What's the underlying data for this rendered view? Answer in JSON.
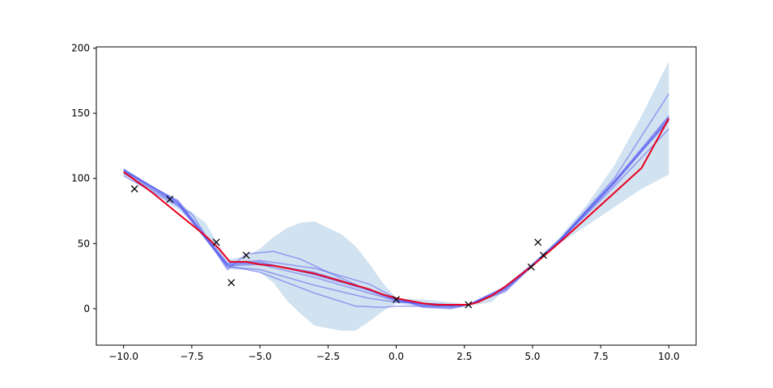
{
  "chart_data": {
    "type": "line",
    "title": "",
    "xlabel": "",
    "ylabel": "",
    "xlim": [
      -11,
      11
    ],
    "ylim": [
      -28,
      201
    ],
    "grid": false,
    "x_ticks": [
      -10.0,
      -7.5,
      -5.0,
      -2.5,
      0.0,
      2.5,
      5.0,
      7.5,
      10.0
    ],
    "x_tick_labels": [
      "−10.0",
      "−7.5",
      "−5.0",
      "−2.5",
      "0.0",
      "2.5",
      "5.0",
      "7.5",
      "10.0"
    ],
    "y_ticks": [
      0,
      50,
      100,
      150,
      200
    ],
    "y_tick_labels": [
      "0",
      "50",
      "100",
      "150",
      "200"
    ],
    "colors": {
      "band": "#c6dbec",
      "samples": "#5a5cf0",
      "mean": "#e8001f",
      "observations": "#000000"
    },
    "confidence_band": {
      "x": [
        -10,
        -9,
        -8,
        -7,
        -6.2,
        -5.5,
        -5,
        -4.5,
        -4,
        -3.5,
        -3,
        -2.5,
        -2,
        -1.5,
        -1,
        -0.5,
        0,
        1,
        2,
        2.65,
        3.5,
        4,
        5,
        6,
        7,
        8,
        9,
        10
      ],
      "upper": [
        108,
        95,
        82,
        66,
        38,
        40,
        46,
        55,
        62,
        66,
        67,
        62,
        57,
        48,
        35,
        20,
        8,
        7,
        5,
        3,
        10,
        18,
        35,
        55,
        80,
        110,
        148,
        190
      ],
      "lower": [
        102,
        90,
        76,
        58,
        30,
        30,
        28,
        20,
        6,
        -4,
        -13,
        -15,
        -17,
        -17,
        -10,
        -2,
        4,
        1,
        0,
        2,
        5,
        15,
        32,
        50,
        64,
        78,
        92,
        103
      ]
    },
    "samples": [
      {
        "x": [
          -10,
          -8,
          -6.2,
          -5,
          -3,
          -1,
          0,
          1,
          2,
          2.65,
          4,
          5,
          6,
          8,
          10
        ],
        "y": [
          107,
          82,
          33,
          34,
          24,
          12,
          6,
          3,
          2,
          3,
          14,
          33,
          52,
          96,
          145
        ]
      },
      {
        "x": [
          -10,
          -8,
          -6.2,
          -5,
          -3,
          -1,
          0,
          1,
          2,
          2.65,
          4,
          5,
          6,
          8,
          10
        ],
        "y": [
          106,
          80,
          34,
          35,
          28,
          15,
          7,
          2,
          1,
          3,
          16,
          34,
          53,
          98,
          148
        ]
      },
      {
        "x": [
          -10,
          -8,
          -6.2,
          -5,
          -3,
          -1,
          0,
          1,
          2,
          2.65,
          4,
          5,
          6,
          8,
          10
        ],
        "y": [
          105,
          83,
          35,
          37,
          31,
          19,
          8,
          1,
          0,
          3,
          15,
          33,
          52,
          97,
          146
        ]
      },
      {
        "x": [
          -10,
          -8,
          -6.2,
          -5,
          -3,
          -1,
          0,
          1,
          2,
          2.65,
          4,
          5,
          6,
          8,
          10
        ],
        "y": [
          107,
          81,
          32,
          30,
          18,
          8,
          5,
          4,
          3,
          3,
          13,
          33,
          53,
          100,
          165
        ]
      },
      {
        "x": [
          -10,
          -8,
          -6.2,
          -5,
          -3,
          -1.5,
          -0.5,
          0,
          1,
          2,
          2.65,
          4,
          5,
          6,
          8,
          10
        ],
        "y": [
          104,
          80,
          33,
          28,
          12,
          2,
          1,
          2,
          2,
          2,
          3,
          17,
          34,
          52,
          94,
          138
        ]
      },
      {
        "x": [
          -10,
          -7.5,
          -6.2,
          -5.5,
          -4.5,
          -3.5,
          -2.5,
          -1,
          0,
          1,
          2,
          2.65,
          4,
          5,
          6,
          8,
          10
        ],
        "y": [
          102,
          73,
          30,
          42,
          44,
          38,
          28,
          14,
          6,
          4,
          3,
          3,
          16,
          33,
          53,
          97,
          147
        ]
      },
      {
        "x": [
          -10,
          -8,
          -6.2,
          -5,
          -3,
          -1,
          0,
          1,
          2,
          2.65,
          4,
          5,
          6,
          8,
          10
        ],
        "y": [
          106,
          82,
          34,
          36,
          26,
          14,
          7,
          3,
          2,
          3,
          15,
          33,
          52,
          98,
          144
        ]
      }
    ],
    "mean": {
      "x": [
        -10,
        -9,
        -8,
        -7,
        -6.5,
        -6.1,
        -5.5,
        -5,
        -4.5,
        -4,
        -3.5,
        -3,
        -2.5,
        -2,
        -1.5,
        -1,
        -0.5,
        0,
        0.5,
        1,
        1.5,
        2,
        2.65,
        3,
        3.5,
        4,
        4.5,
        5,
        6,
        7,
        8,
        9,
        10
      ],
      "y": [
        105,
        90,
        73,
        56,
        46,
        36,
        36,
        34,
        33,
        31,
        29,
        27,
        24,
        21,
        18,
        15,
        11,
        8,
        6,
        4,
        3,
        3,
        3,
        5,
        10,
        17,
        25,
        33,
        51,
        70,
        89,
        108,
        146
      ]
    },
    "observations": {
      "x": [
        -9.6,
        -8.3,
        -6.6,
        -6.05,
        -5.5,
        0.0,
        2.65,
        4.95,
        5.2,
        5.4
      ],
      "y": [
        92,
        84,
        51,
        20,
        41,
        7,
        3,
        32,
        51,
        41
      ]
    }
  }
}
